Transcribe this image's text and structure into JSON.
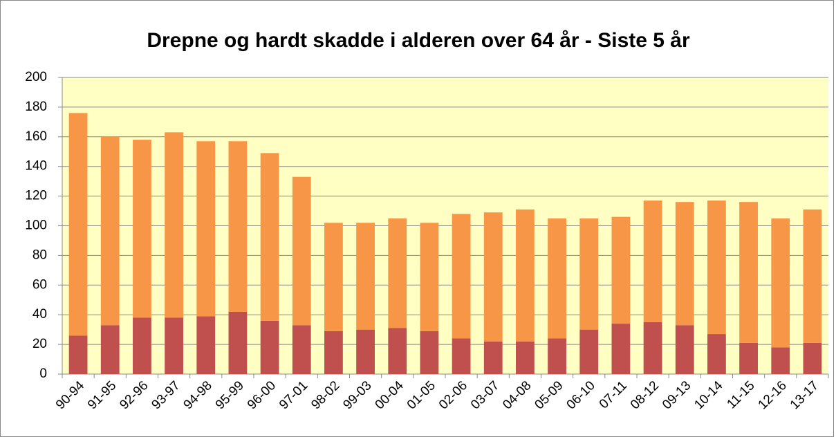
{
  "chart_data": {
    "type": "bar",
    "stacked": true,
    "title": "Drepne og hardt skadde i alderen over 64 år - Siste 5 år",
    "categories": [
      "90-94",
      "91-95",
      "92-96",
      "93-97",
      "94-98",
      "95-99",
      "96-00",
      "97-01",
      "98-02",
      "99-03",
      "00-04",
      "01-05",
      "02-06",
      "03-07",
      "04-08",
      "05-09",
      "06-10",
      "07-11",
      "08-12",
      "09-13",
      "10-14",
      "11-15",
      "12-16",
      "13-17"
    ],
    "series": [
      {
        "color": "#c0504d",
        "values": [
          26,
          33,
          38,
          38,
          39,
          42,
          36,
          33,
          29,
          30,
          31,
          29,
          24,
          22,
          22,
          24,
          30,
          34,
          35,
          33,
          27,
          21,
          18,
          21
        ]
      },
      {
        "color": "#f79646",
        "values": [
          150,
          127,
          120,
          125,
          118,
          115,
          113,
          100,
          73,
          72,
          74,
          73,
          84,
          87,
          89,
          81,
          75,
          72,
          82,
          83,
          90,
          95,
          87,
          90
        ]
      }
    ],
    "ylim": [
      0,
      200
    ],
    "yticks": [
      0,
      20,
      40,
      60,
      80,
      100,
      120,
      140,
      160,
      180,
      200
    ],
    "grid": true
  }
}
